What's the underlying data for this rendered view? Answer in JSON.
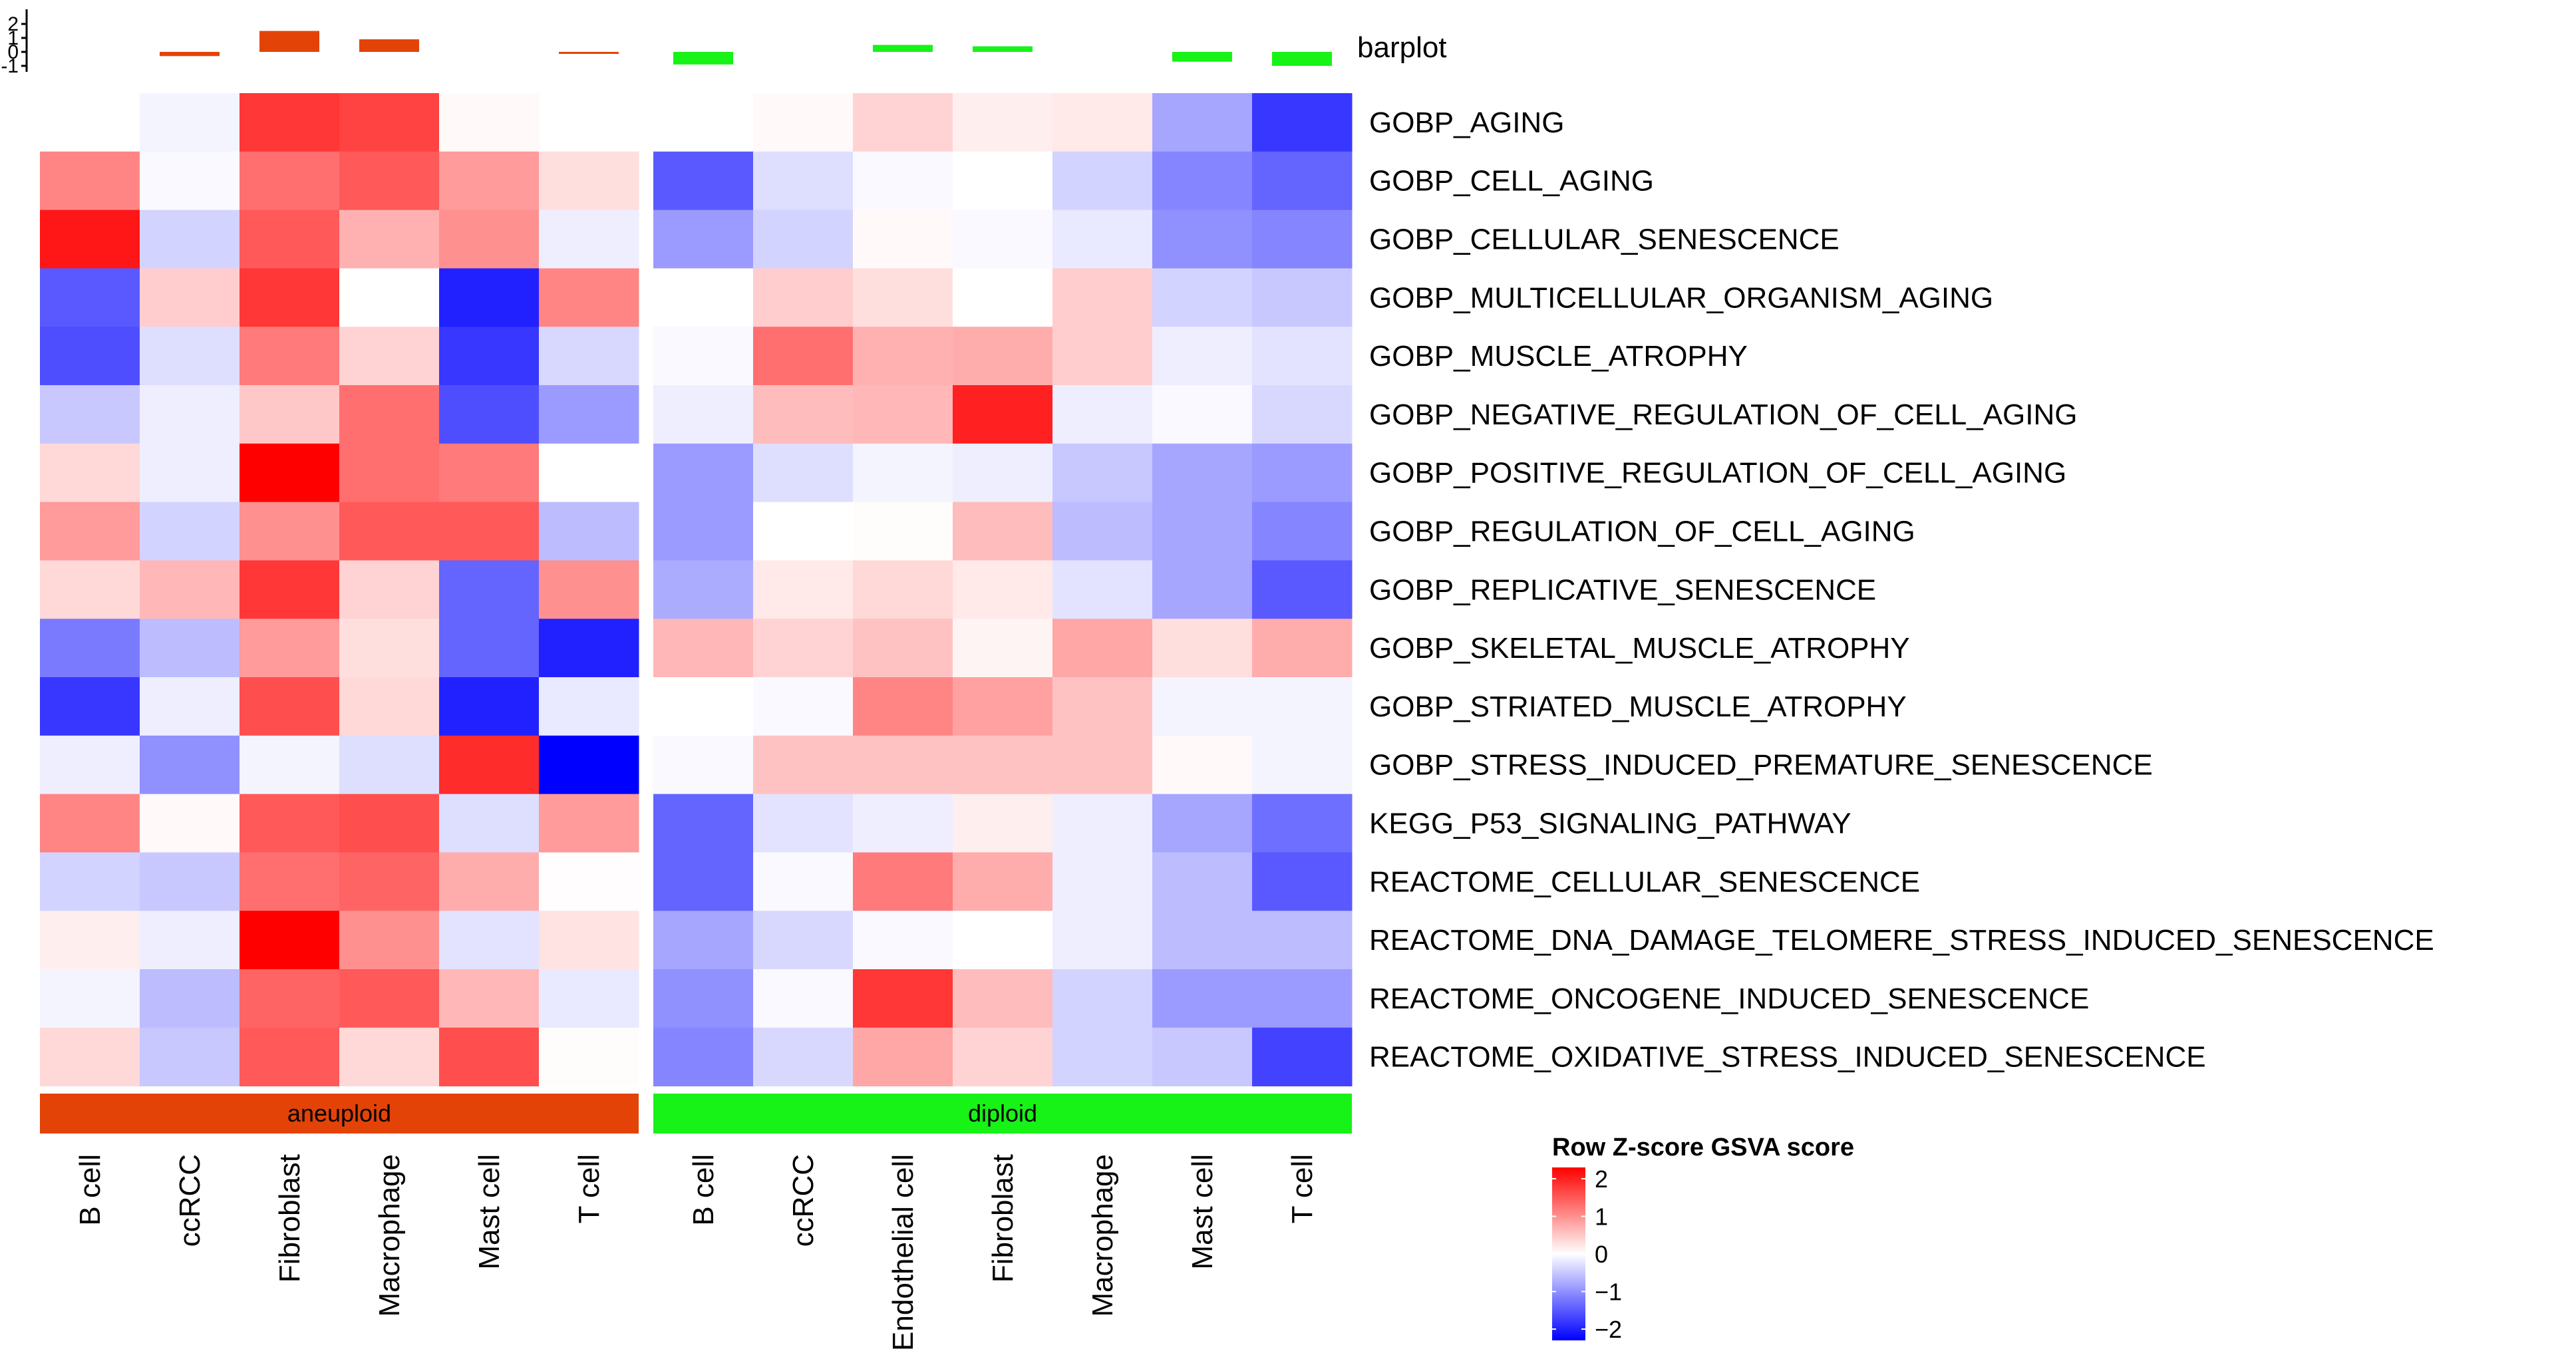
{
  "chart_data": {
    "type": "heatmap",
    "title": "",
    "value_label": "Row Z-score GSVA score",
    "groups": [
      {
        "name": "aneuploid",
        "color": "#E34307",
        "columns": [
          "B cell",
          "ccRCC",
          "Fibroblast",
          "Macrophage",
          "Mast cell",
          "T cell"
        ]
      },
      {
        "name": "diploid",
        "color": "#17F217",
        "columns": [
          "B cell",
          "ccRCC",
          "Endothelial cell",
          "Fibroblast",
          "Macrophage",
          "Mast cell",
          "T cell"
        ]
      }
    ],
    "rows": [
      "GOBP_AGING",
      "GOBP_CELL_AGING",
      "GOBP_CELLULAR_SENESCENCE",
      "GOBP_MULTICELLULAR_ORGANISM_AGING",
      "GOBP_MUSCLE_ATROPHY",
      "GOBP_NEGATIVE_REGULATION_OF_CELL_AGING",
      "GOBP_POSITIVE_REGULATION_OF_CELL_AGING",
      "GOBP_REGULATION_OF_CELL_AGING",
      "GOBP_REPLICATIVE_SENESCENCE",
      "GOBP_SKELETAL_MUSCLE_ATROPHY",
      "GOBP_STRIATED_MUSCLE_ATROPHY",
      "GOBP_STRESS_INDUCED_PREMATURE_SENESCENCE",
      "KEGG_P53_SIGNALING_PATHWAY",
      "REACTOME_CELLULAR_SENESCENCE",
      "REACTOME_DNA_DAMAGE_TELOMERE_STRESS_INDUCED_SENESCENCE",
      "REACTOME_ONCOGENE_INDUCED_SENESCENCE",
      "REACTOME_OXIDATIVE_STRESS_INDUCED_SENESCENCE"
    ],
    "values": [
      [
        null,
        -0.1,
        1.8,
        1.7,
        0.05,
        null,
        null,
        0.05,
        0.4,
        0.15,
        0.2,
        -0.8,
        -1.8
      ],
      [
        1.1,
        -0.05,
        1.3,
        1.5,
        0.9,
        0.3,
        -1.5,
        -0.3,
        -0.05,
        0,
        -0.4,
        -1.1,
        -1.4
      ],
      [
        2.1,
        -0.4,
        1.5,
        0.7,
        1.0,
        -0.15,
        -0.9,
        -0.4,
        0.05,
        -0.05,
        -0.2,
        -1.0,
        -1.1
      ],
      [
        -1.5,
        0.45,
        1.8,
        0,
        -2.0,
        1.1,
        0,
        0.45,
        0.3,
        0,
        0.45,
        -0.4,
        -0.5
      ],
      [
        -1.6,
        -0.3,
        1.2,
        0.4,
        -1.8,
        -0.35,
        -0.05,
        1.3,
        0.7,
        0.75,
        0.45,
        -0.15,
        -0.25
      ],
      [
        -0.5,
        -0.15,
        0.5,
        1.3,
        -1.6,
        -0.9,
        -0.15,
        0.6,
        0.65,
        2.0,
        -0.15,
        -0.05,
        -0.35
      ],
      [
        0.35,
        -0.15,
        2.3,
        1.3,
        1.2,
        0,
        -0.9,
        -0.3,
        -0.1,
        -0.15,
        -0.5,
        -0.8,
        -0.9
      ],
      [
        0.9,
        -0.4,
        1.0,
        1.5,
        1.5,
        -0.6,
        -0.9,
        0,
        0.03,
        0.6,
        -0.6,
        -0.8,
        -1.1
      ],
      [
        0.35,
        0.65,
        1.8,
        0.4,
        -1.4,
        1.0,
        -0.75,
        0.2,
        0.35,
        0.2,
        -0.25,
        -0.8,
        -1.5
      ],
      [
        -1.2,
        -0.6,
        0.9,
        0.3,
        -1.4,
        -2.0,
        0.65,
        0.4,
        0.55,
        0.1,
        0.8,
        0.3,
        0.75
      ],
      [
        -1.8,
        -0.15,
        1.6,
        0.35,
        -2.0,
        -0.2,
        0,
        -0.05,
        1.1,
        0.85,
        0.55,
        -0.1,
        -0.1
      ],
      [
        -0.15,
        -1.0,
        -0.1,
        -0.3,
        1.9,
        -2.4,
        -0.05,
        0.55,
        0.55,
        0.55,
        0.55,
        0.05,
        -0.1
      ],
      [
        1.1,
        0.05,
        1.5,
        1.6,
        -0.3,
        0.9,
        -1.4,
        -0.25,
        -0.15,
        0.15,
        -0.15,
        -0.8,
        -1.3
      ],
      [
        -0.4,
        -0.5,
        1.3,
        1.4,
        0.75,
        0.02,
        -1.4,
        -0.05,
        1.2,
        0.75,
        -0.15,
        -0.6,
        -1.5
      ],
      [
        0.15,
        -0.15,
        2.5,
        1.0,
        -0.25,
        0.25,
        -0.8,
        -0.35,
        -0.05,
        0,
        -0.15,
        -0.6,
        -0.6
      ],
      [
        -0.1,
        -0.6,
        1.4,
        1.5,
        0.65,
        -0.2,
        -1.0,
        -0.05,
        1.8,
        0.6,
        -0.4,
        -0.9,
        -0.9
      ],
      [
        0.35,
        -0.5,
        1.5,
        0.35,
        1.6,
        0.03,
        -1.1,
        -0.35,
        0.8,
        0.4,
        -0.4,
        -0.5,
        -1.7
      ]
    ],
    "barplot": {
      "label": "barplot",
      "values": [
        null,
        -0.3,
        1.5,
        0.9,
        null,
        -0.1,
        -0.9,
        null,
        0.5,
        0.4,
        null,
        -0.7,
        -1.0
      ],
      "ylim": [
        -1,
        2
      ],
      "ticks": [
        "2",
        "1",
        "0",
        "-1"
      ]
    },
    "legend": {
      "title": "Row Z-score GSVA score",
      "range": [
        -2.3,
        2.3
      ],
      "tick_values": [
        2,
        1,
        0,
        -1,
        -2
      ],
      "tick_labels": [
        "2",
        "1",
        "0",
        "−1",
        "−2"
      ],
      "colors": {
        "low": "#0000FF",
        "mid": "#FFFFFF",
        "high": "#FF0000"
      }
    }
  }
}
